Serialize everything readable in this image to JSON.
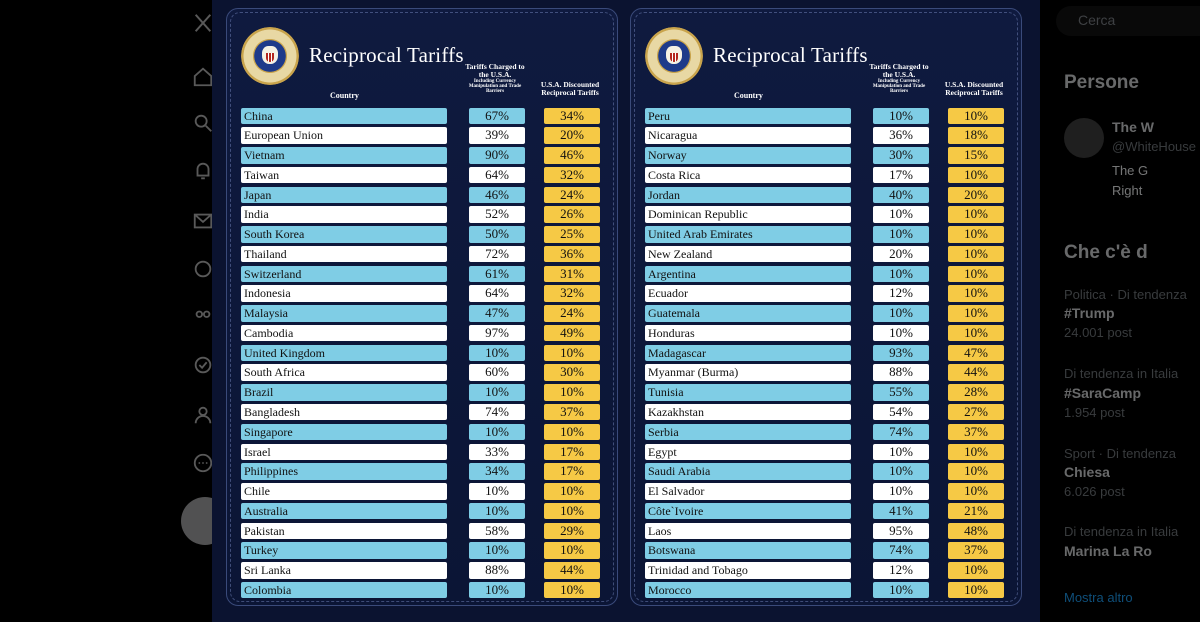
{
  "app": {
    "search_placeholder": "Cerca",
    "right_panel": {
      "people_heading": "Persone",
      "person_name": "The W",
      "person_handle": "@WhiteHouse",
      "person_bio_1": "The G",
      "person_bio_2": "Right",
      "whats_happening_heading": "Che c'è d",
      "trends": [
        {
          "meta": "Politica · Di tendenza",
          "name": "#Trump",
          "count": "24.001 post"
        },
        {
          "meta": "Di tendenza in Italia",
          "name": "#SaraCamp",
          "count": "1.954 post"
        },
        {
          "meta": "Sport · Di tendenza",
          "name": "Chiesa",
          "count": "6.026 post"
        },
        {
          "meta": "Di tendenza in Italia",
          "name": "Marina La Ro",
          "count": ""
        }
      ],
      "show_more": "Mostra altro"
    }
  },
  "colors": {
    "panel_bg": "#0f1a3f",
    "country_blue": "#7fcde5",
    "country_white": "#ffffff",
    "reciprocal_yellow": "#f6c945"
  },
  "left_panel": {
    "title": "Reciprocal Tariffs",
    "header_country": "Country",
    "header_charged_main": "Tariffs Charged to the U.S.A.",
    "header_charged_sub": "Including Currency Manipulation and Trade Barriers",
    "header_reciprocal": "U.S.A. Discounted Reciprocal Tariffs",
    "rows": [
      {
        "country": "China",
        "charged": "67%",
        "reciprocal": "34%"
      },
      {
        "country": "European Union",
        "charged": "39%",
        "reciprocal": "20%"
      },
      {
        "country": "Vietnam",
        "charged": "90%",
        "reciprocal": "46%"
      },
      {
        "country": "Taiwan",
        "charged": "64%",
        "reciprocal": "32%"
      },
      {
        "country": "Japan",
        "charged": "46%",
        "reciprocal": "24%"
      },
      {
        "country": "India",
        "charged": "52%",
        "reciprocal": "26%"
      },
      {
        "country": "South Korea",
        "charged": "50%",
        "reciprocal": "25%"
      },
      {
        "country": "Thailand",
        "charged": "72%",
        "reciprocal": "36%"
      },
      {
        "country": "Switzerland",
        "charged": "61%",
        "reciprocal": "31%"
      },
      {
        "country": "Indonesia",
        "charged": "64%",
        "reciprocal": "32%"
      },
      {
        "country": "Malaysia",
        "charged": "47%",
        "reciprocal": "24%"
      },
      {
        "country": "Cambodia",
        "charged": "97%",
        "reciprocal": "49%"
      },
      {
        "country": "United Kingdom",
        "charged": "10%",
        "reciprocal": "10%"
      },
      {
        "country": "South Africa",
        "charged": "60%",
        "reciprocal": "30%"
      },
      {
        "country": "Brazil",
        "charged": "10%",
        "reciprocal": "10%"
      },
      {
        "country": "Bangladesh",
        "charged": "74%",
        "reciprocal": "37%"
      },
      {
        "country": "Singapore",
        "charged": "10%",
        "reciprocal": "10%"
      },
      {
        "country": "Israel",
        "charged": "33%",
        "reciprocal": "17%"
      },
      {
        "country": "Philippines",
        "charged": "34%",
        "reciprocal": "17%"
      },
      {
        "country": "Chile",
        "charged": "10%",
        "reciprocal": "10%"
      },
      {
        "country": "Australia",
        "charged": "10%",
        "reciprocal": "10%"
      },
      {
        "country": "Pakistan",
        "charged": "58%",
        "reciprocal": "29%"
      },
      {
        "country": "Turkey",
        "charged": "10%",
        "reciprocal": "10%"
      },
      {
        "country": "Sri Lanka",
        "charged": "88%",
        "reciprocal": "44%"
      },
      {
        "country": "Colombia",
        "charged": "10%",
        "reciprocal": "10%"
      }
    ]
  },
  "right_panel_table": {
    "title": "Reciprocal Tariffs",
    "header_country": "Country",
    "header_charged_main": "Tariffs Charged to the U.S.A.",
    "header_charged_sub": "Including Currency Manipulation and Trade Barriers",
    "header_reciprocal": "U.S.A. Discounted Reciprocal Tariffs",
    "rows": [
      {
        "country": "Peru",
        "charged": "10%",
        "reciprocal": "10%"
      },
      {
        "country": "Nicaragua",
        "charged": "36%",
        "reciprocal": "18%"
      },
      {
        "country": "Norway",
        "charged": "30%",
        "reciprocal": "15%"
      },
      {
        "country": "Costa Rica",
        "charged": "17%",
        "reciprocal": "10%"
      },
      {
        "country": "Jordan",
        "charged": "40%",
        "reciprocal": "20%"
      },
      {
        "country": "Dominican Republic",
        "charged": "10%",
        "reciprocal": "10%"
      },
      {
        "country": "United Arab Emirates",
        "charged": "10%",
        "reciprocal": "10%"
      },
      {
        "country": "New Zealand",
        "charged": "20%",
        "reciprocal": "10%"
      },
      {
        "country": "Argentina",
        "charged": "10%",
        "reciprocal": "10%"
      },
      {
        "country": "Ecuador",
        "charged": "12%",
        "reciprocal": "10%"
      },
      {
        "country": "Guatemala",
        "charged": "10%",
        "reciprocal": "10%"
      },
      {
        "country": "Honduras",
        "charged": "10%",
        "reciprocal": "10%"
      },
      {
        "country": "Madagascar",
        "charged": "93%",
        "reciprocal": "47%"
      },
      {
        "country": "Myanmar (Burma)",
        "charged": "88%",
        "reciprocal": "44%"
      },
      {
        "country": "Tunisia",
        "charged": "55%",
        "reciprocal": "28%"
      },
      {
        "country": "Kazakhstan",
        "charged": "54%",
        "reciprocal": "27%"
      },
      {
        "country": "Serbia",
        "charged": "74%",
        "reciprocal": "37%"
      },
      {
        "country": "Egypt",
        "charged": "10%",
        "reciprocal": "10%"
      },
      {
        "country": "Saudi Arabia",
        "charged": "10%",
        "reciprocal": "10%"
      },
      {
        "country": "El Salvador",
        "charged": "10%",
        "reciprocal": "10%"
      },
      {
        "country": "Côte`Ivoire",
        "charged": "41%",
        "reciprocal": "21%"
      },
      {
        "country": "Laos",
        "charged": "95%",
        "reciprocal": "48%"
      },
      {
        "country": "Botswana",
        "charged": "74%",
        "reciprocal": "37%"
      },
      {
        "country": "Trinidad and Tobago",
        "charged": "12%",
        "reciprocal": "10%"
      },
      {
        "country": "Morocco",
        "charged": "10%",
        "reciprocal": "10%"
      }
    ]
  }
}
